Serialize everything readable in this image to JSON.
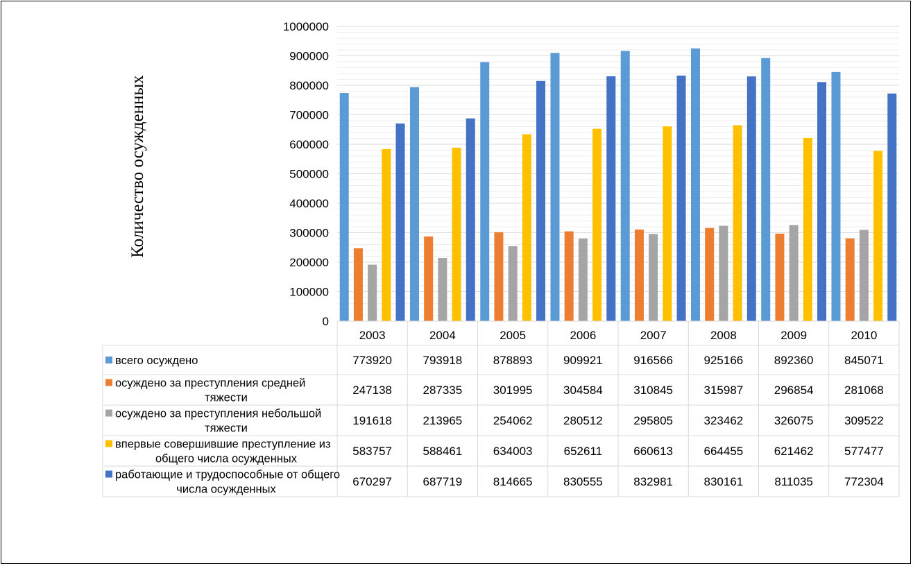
{
  "chart_data": {
    "type": "bar",
    "ylabel": "Количество осужденных",
    "xlabel": "",
    "ylim": [
      0,
      1000000
    ],
    "ytick_step": 100000,
    "grid": true,
    "legend": "data-table-below",
    "categories": [
      "2003",
      "2004",
      "2005",
      "2006",
      "2007",
      "2008",
      "2009",
      "2010"
    ],
    "series": [
      {
        "name": "всего осуждено",
        "color": "#5B9BD5",
        "values": [
          773920,
          793918,
          878893,
          909921,
          916566,
          925166,
          892360,
          845071
        ]
      },
      {
        "name": "осуждено за преступления средней тяжести",
        "color": "#ED7D31",
        "values": [
          247138,
          287335,
          301995,
          304584,
          310845,
          315987,
          296854,
          281068
        ]
      },
      {
        "name": "осуждено за преступления небольшой тяжести",
        "color": "#A5A5A5",
        "values": [
          191618,
          213965,
          254062,
          280512,
          295805,
          323462,
          326075,
          309522
        ]
      },
      {
        "name": "впервые совершившие преступление из общего числа осужденных",
        "color": "#FFC000",
        "values": [
          583757,
          588461,
          634003,
          652611,
          660613,
          664455,
          621462,
          577477
        ]
      },
      {
        "name": "работающие и трудоспособные от общего числа осужденных",
        "color": "#4472C4",
        "values": [
          670297,
          687719,
          814665,
          830555,
          832981,
          830161,
          811035,
          772304
        ]
      }
    ]
  }
}
